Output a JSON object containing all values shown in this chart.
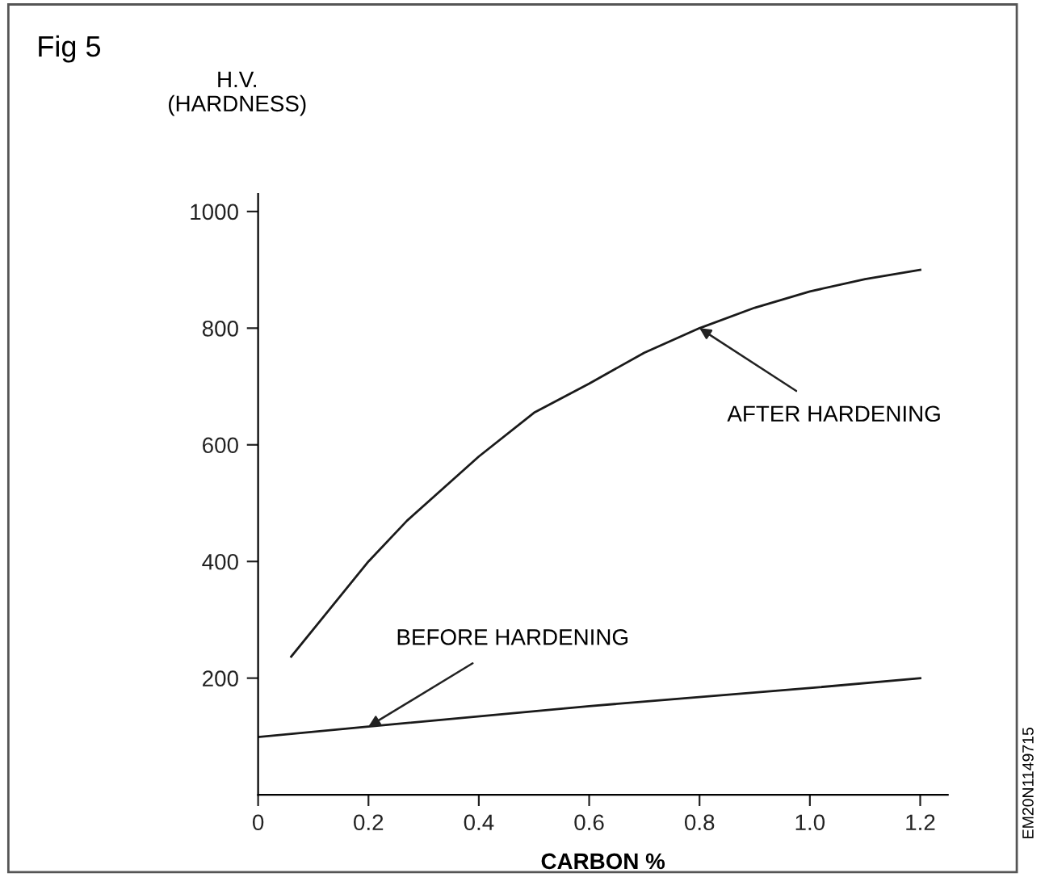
{
  "chart_data": {
    "type": "line",
    "title": "Fig 5",
    "xlabel": "CARBON %",
    "ylabel": "H.V.\n(HARDNESS)",
    "xlim": [
      0,
      1.25
    ],
    "ylim": [
      0,
      1030
    ],
    "xticks": [
      0,
      0.2,
      0.4,
      0.6,
      0.8,
      {
        "value": 1,
        "label": "1.0"
      },
      1.2
    ],
    "yticks": [
      200,
      400,
      600,
      800,
      1000
    ],
    "grid": false,
    "legend": false,
    "marker": "none",
    "line_style": "solid",
    "series": [
      {
        "color": "#1a1a1a",
        "x": [
          0.06,
          0.2,
          0.27,
          0.4,
          0.5,
          0.6,
          0.7,
          0.8,
          0.9,
          1.0,
          1.1,
          1.2
        ],
        "values": [
          237,
          400,
          470,
          580,
          655,
          705,
          758,
          800,
          835,
          863,
          884,
          900
        ]
      },
      {
        "color": "#1a1a1a",
        "x": [
          0,
          0.2,
          0.6,
          1.0,
          1.2
        ],
        "values": [
          99,
          117,
          152,
          183,
          200
        ]
      }
    ],
    "annotations": [
      {
        "text": "AFTER HARDENING",
        "x": 0.8,
        "y": 800
      },
      {
        "text": "BEFORE HARDENING",
        "x": 0.2,
        "y": 117
      },
      "EM20N1149715"
    ]
  }
}
